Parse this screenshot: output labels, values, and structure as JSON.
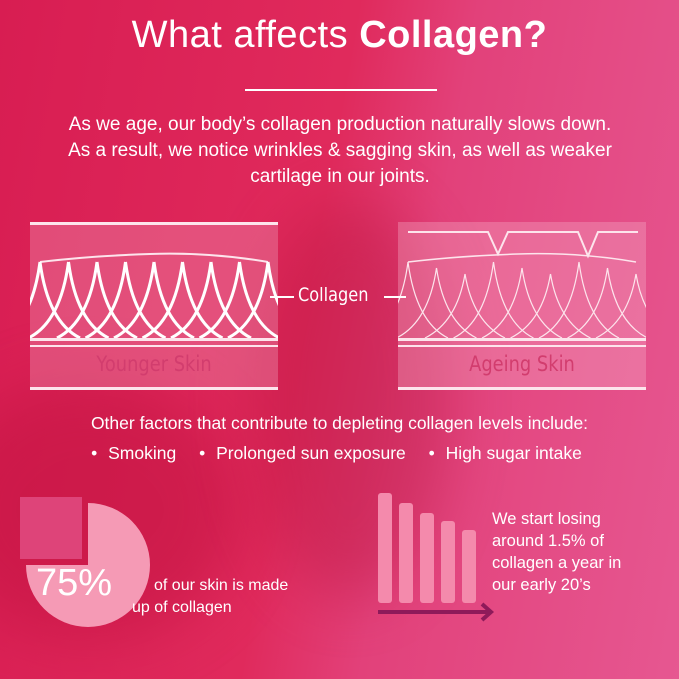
{
  "header": {
    "title_light": "What affects ",
    "title_bold": "Collagen?"
  },
  "intro": "As we age, our body’s collagen production naturally slows down. As a result, we notice wrinkles & sagging skin, as well as weaker cartilage in our joints.",
  "diagram": {
    "center_label": "Collagen",
    "left_label": "Younger Skin",
    "right_label": "Ageing Skin"
  },
  "factors": {
    "heading": "Other factors that contribute to depleting collagen levels include:",
    "items": [
      "Smoking",
      "Prolonged sun exposure",
      "High sugar intake"
    ]
  },
  "stat_pie": {
    "value": "75%",
    "fraction": 0.75,
    "text_line1": "of our skin is made",
    "text_line2": "up of collagen"
  },
  "stat_loss": {
    "text": [
      "We start losing",
      "around 1.5% of",
      "collagen a year in",
      "our early 20’s"
    ]
  },
  "colors": {
    "background": "#e02a5c",
    "pie_light": "#f59ab5",
    "pie_dark": "#de4479",
    "label_pink": "#d23d6e",
    "arrow": "#8e1a5a"
  }
}
